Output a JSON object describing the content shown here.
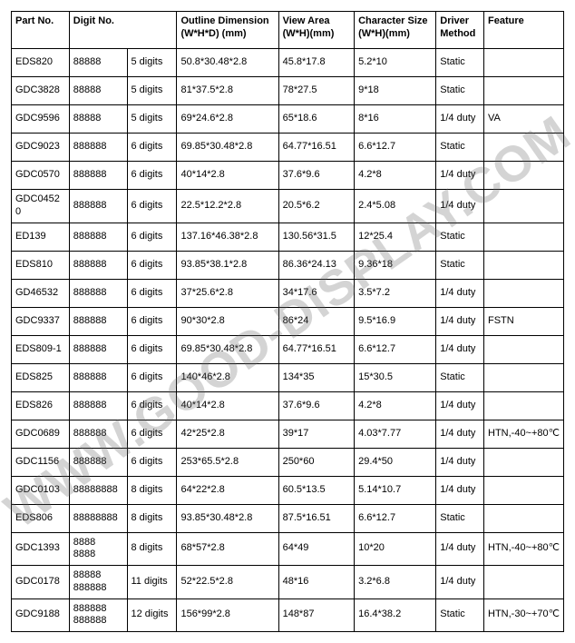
{
  "watermark": "WWW.GOOD-DISPLAY.COM",
  "headers": {
    "part": "Part No.",
    "digit": "Digit No.",
    "outline": "Outline Dimension (W*H*D) (mm)",
    "view": "View Area (W*H)(mm)",
    "char": "Character Size (W*H)(mm)",
    "driver": "Driver Method",
    "feature": "Feature"
  },
  "rows": [
    {
      "part": "EDS820",
      "digit": "88888",
      "digitn": "5 digits",
      "outline": "50.8*30.48*2.8",
      "view": "45.8*17.8",
      "char": "5.2*10",
      "driver": "Static",
      "feature": ""
    },
    {
      "part": "GDC3828",
      "digit": "88888",
      "digitn": "5 digits",
      "outline": "81*37.5*2.8",
      "view": "78*27.5",
      "char": "9*18",
      "driver": "Static",
      "feature": ""
    },
    {
      "part": "GDC9596",
      "digit": "88888",
      "digitn": "5 digits",
      "outline": "69*24.6*2.8",
      "view": "65*18.6",
      "char": "8*16",
      "driver": "1/4 duty",
      "feature": "VA"
    },
    {
      "part": "GDC9023",
      "digit": "888888",
      "digitn": "6 digits",
      "outline": "69.85*30.48*2.8",
      "view": "64.77*16.51",
      "char": "6.6*12.7",
      "driver": "Static",
      "feature": ""
    },
    {
      "part": "GDC0570",
      "digit": "888888",
      "digitn": "6 digits",
      "outline": "40*14*2.8",
      "view": "37.6*9.6",
      "char": "4.2*8",
      "driver": "1/4 duty",
      "feature": ""
    },
    {
      "part": "GDC04520",
      "digit": "888888",
      "digitn": "6 digits",
      "outline": "22.5*12.2*2.8",
      "view": "20.5*6.2",
      "char": "2.4*5.08",
      "driver": "1/4 duty",
      "feature": ""
    },
    {
      "part": "ED139",
      "digit": "888888",
      "digitn": "6 digits",
      "outline": "137.16*46.38*2.8",
      "view": "130.56*31.5",
      "char": "12*25.4",
      "driver": "Static",
      "feature": ""
    },
    {
      "part": "EDS810",
      "digit": "888888",
      "digitn": "6 digits",
      "outline": "93.85*38.1*2.8",
      "view": "86.36*24.13",
      "char": "9.36*18",
      "driver": "Static",
      "feature": ""
    },
    {
      "part": "GD46532",
      "digit": "888888",
      "digitn": "6 digits",
      "outline": "37*25.6*2.8",
      "view": "34*17.6",
      "char": "3.5*7.2",
      "driver": "1/4 duty",
      "feature": ""
    },
    {
      "part": "GDC9337",
      "digit": "888888",
      "digitn": "6 digits",
      "outline": "90*30*2.8",
      "view": "86*24",
      "char": "9.5*16.9",
      "driver": "1/4 duty",
      "feature": "FSTN"
    },
    {
      "part": "EDS809-1",
      "digit": "888888",
      "digitn": "6 digits",
      "outline": "69.85*30.48*2.8",
      "view": "64.77*16.51",
      "char": "6.6*12.7",
      "driver": "1/4 duty",
      "feature": ""
    },
    {
      "part": "EDS825",
      "digit": "888888",
      "digitn": "6 digits",
      "outline": "140*46*2.8",
      "view": "134*35",
      "char": "15*30.5",
      "driver": "Static",
      "feature": ""
    },
    {
      "part": "EDS826",
      "digit": "888888",
      "digitn": "6 digits",
      "outline": "40*14*2.8",
      "view": "37.6*9.6",
      "char": "4.2*8",
      "driver": "1/4 duty",
      "feature": ""
    },
    {
      "part": "GDC0689",
      "digit": "888888",
      "digitn": "6 digits",
      "outline": "42*25*2.8",
      "view": "39*17",
      "char": "4.03*7.77",
      "driver": "1/4 duty",
      "feature": "HTN,-40~+80℃"
    },
    {
      "part": "GDC1156",
      "digit": "888888",
      "digitn": "6 digits",
      "outline": "253*65.5*2.8",
      "view": "250*60",
      "char": "29.4*50",
      "driver": "1/4 duty",
      "feature": ""
    },
    {
      "part": "GDC0103",
      "digit": "88888888",
      "digitn": "8 digits",
      "outline": "64*22*2.8",
      "view": "60.5*13.5",
      "char": "5.14*10.7",
      "driver": "1/4 duty",
      "feature": ""
    },
    {
      "part": "EDS806",
      "digit": "88888888",
      "digitn": "8 digits",
      "outline": "93.85*30.48*2.8",
      "view": "87.5*16.51",
      "char": "6.6*12.7",
      "driver": "Static",
      "feature": ""
    },
    {
      "part": "GDC1393",
      "digit": "8888\n8888",
      "digitn": "8 digits",
      "outline": "68*57*2.8",
      "view": "64*49",
      "char": "10*20",
      "driver": "1/4 duty",
      "feature": "HTN,-40~+80℃"
    },
    {
      "part": "GDC0178",
      "digit": "88888\n888888",
      "digitn": "11 digits",
      "outline": "52*22.5*2.8",
      "view": "48*16",
      "char": "3.2*6.8",
      "driver": "1/4 duty",
      "feature": ""
    },
    {
      "part": "GDC9188",
      "digit": "888888\n888888",
      "digitn": "12 digits",
      "outline": "156*99*2.8",
      "view": "148*87",
      "char": "16.4*38.2",
      "driver": "Static",
      "feature": "HTN,-30~+70℃"
    }
  ]
}
